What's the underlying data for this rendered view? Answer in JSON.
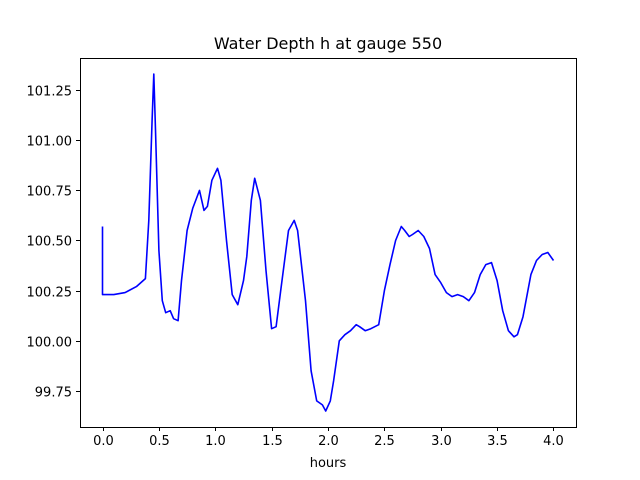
{
  "chart_data": {
    "type": "line",
    "title": "Water Depth h at gauge 550",
    "xlabel": "hours",
    "ylabel": "",
    "xlim": [
      -0.2,
      4.2
    ],
    "ylim": [
      99.57,
      101.41
    ],
    "xticks": [
      0.0,
      0.5,
      1.0,
      1.5,
      2.0,
      2.5,
      3.0,
      3.5,
      4.0
    ],
    "xtick_labels": [
      "0.0",
      "0.5",
      "1.0",
      "1.5",
      "2.0",
      "2.5",
      "3.0",
      "3.5",
      "4.0"
    ],
    "yticks": [
      99.75,
      100.0,
      100.25,
      100.5,
      100.75,
      101.0,
      101.25
    ],
    "ytick_labels": [
      "99.75",
      "100.00",
      "100.25",
      "100.50",
      "100.75",
      "101.00",
      "101.25"
    ],
    "grid": false,
    "series": [
      {
        "color": "#0000ff",
        "x": [
          0.0,
          0.0,
          0.0,
          0.1,
          0.2,
          0.3,
          0.38,
          0.41,
          0.44,
          0.455,
          0.47,
          0.5,
          0.53,
          0.56,
          0.6,
          0.63,
          0.67,
          0.7,
          0.75,
          0.8,
          0.86,
          0.9,
          0.93,
          0.97,
          1.02,
          1.05,
          1.1,
          1.15,
          1.2,
          1.25,
          1.28,
          1.32,
          1.35,
          1.4,
          1.45,
          1.5,
          1.54,
          1.58,
          1.65,
          1.7,
          1.73,
          1.8,
          1.85,
          1.9,
          1.95,
          1.98,
          2.02,
          2.05,
          2.1,
          2.15,
          2.2,
          2.25,
          2.28,
          2.33,
          2.38,
          2.45,
          2.5,
          2.55,
          2.6,
          2.65,
          2.68,
          2.72,
          2.75,
          2.8,
          2.85,
          2.9,
          2.95,
          3.0,
          3.05,
          3.1,
          3.15,
          3.2,
          3.25,
          3.3,
          3.35,
          3.4,
          3.45,
          3.5,
          3.55,
          3.6,
          3.65,
          3.68,
          3.73,
          3.8,
          3.85,
          3.9,
          3.95,
          4.0
        ],
        "y": [
          100.57,
          100.4,
          100.23,
          100.23,
          100.24,
          100.27,
          100.31,
          100.6,
          101.1,
          101.33,
          101.05,
          100.45,
          100.2,
          100.14,
          100.15,
          100.11,
          100.1,
          100.3,
          100.55,
          100.66,
          100.75,
          100.65,
          100.67,
          100.8,
          100.86,
          100.8,
          100.5,
          100.23,
          100.18,
          100.3,
          100.42,
          100.7,
          100.81,
          100.7,
          100.35,
          100.06,
          100.07,
          100.25,
          100.55,
          100.6,
          100.55,
          100.2,
          99.85,
          99.7,
          99.68,
          99.65,
          99.7,
          99.8,
          100.0,
          100.03,
          100.05,
          100.08,
          100.07,
          100.05,
          100.06,
          100.08,
          100.25,
          100.38,
          100.5,
          100.57,
          100.55,
          100.52,
          100.53,
          100.55,
          100.52,
          100.46,
          100.33,
          100.29,
          100.24,
          100.22,
          100.23,
          100.22,
          100.2,
          100.24,
          100.33,
          100.38,
          100.39,
          100.3,
          100.15,
          100.05,
          100.02,
          100.03,
          100.12,
          100.33,
          100.4,
          100.43,
          100.44,
          100.4
        ]
      }
    ]
  }
}
